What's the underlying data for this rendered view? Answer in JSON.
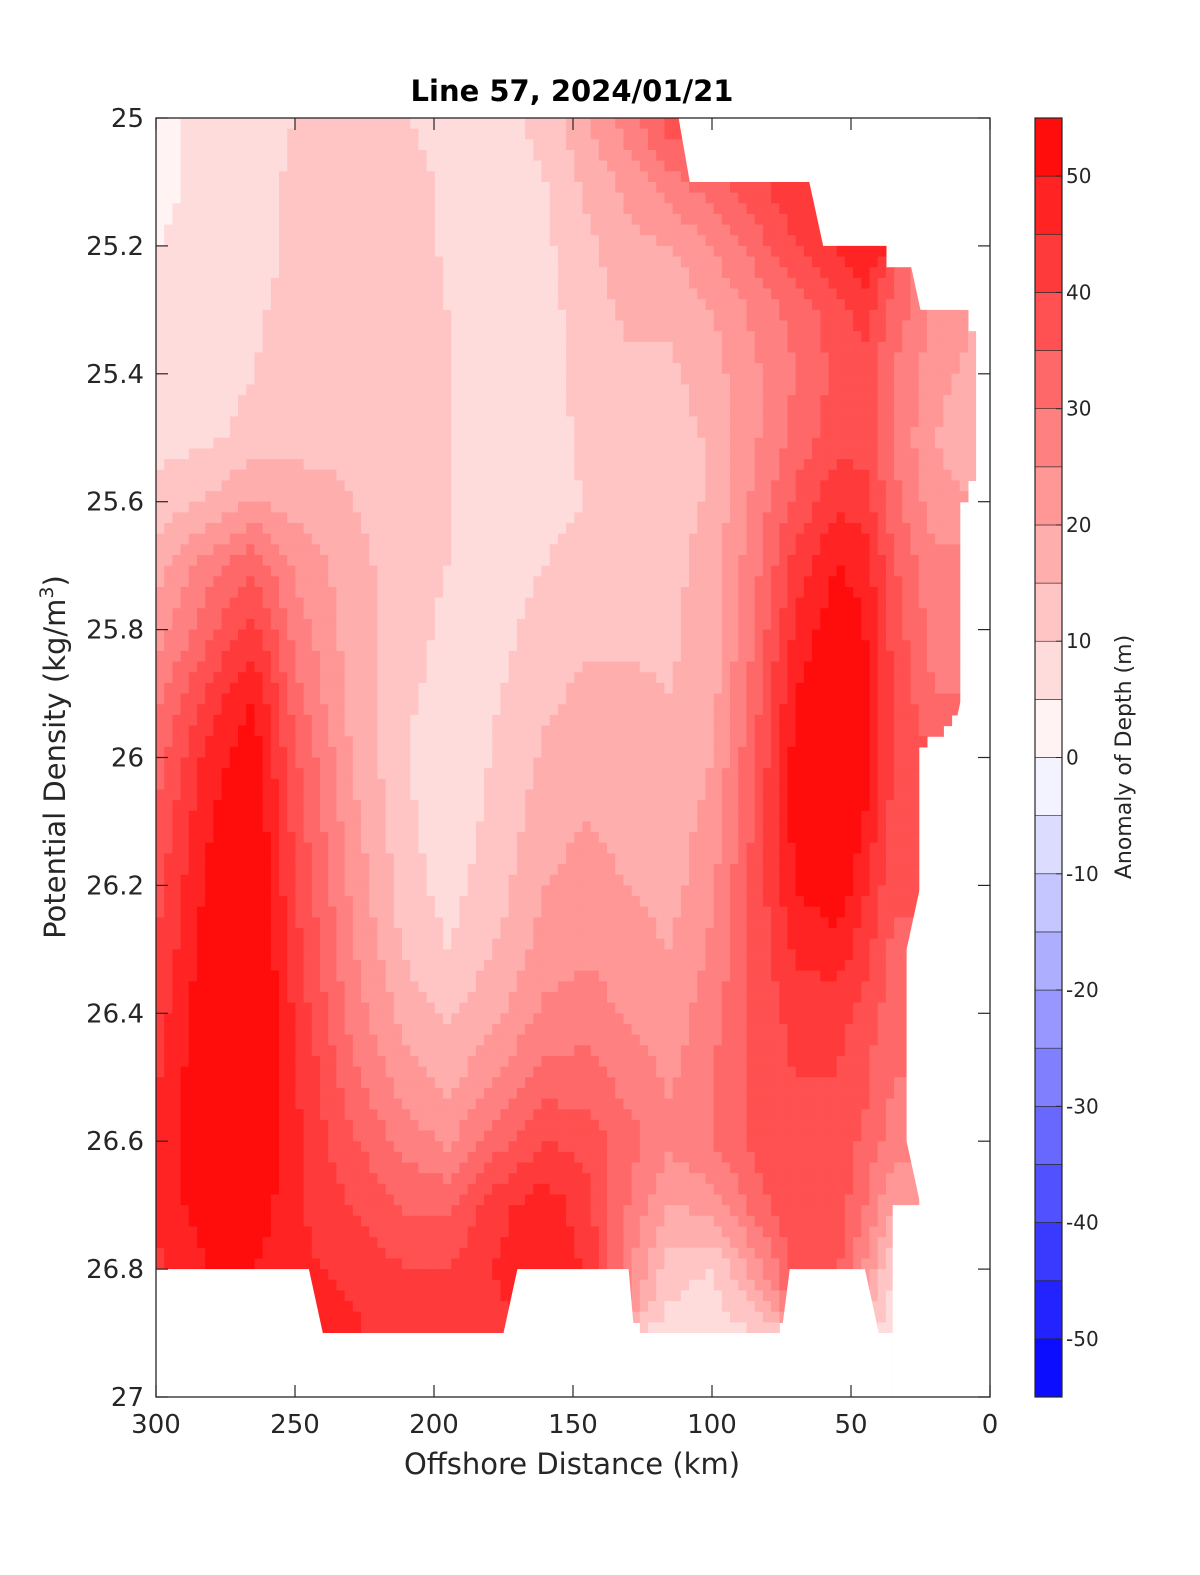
{
  "chart_data": {
    "type": "heatmap",
    "title": "Line 57, 2024/01/21",
    "xlabel": "Offshore Distance (km)",
    "ylabel": "Potential Density (kg/m",
    "ylabel_sup": "3",
    "ylabel_close": ")",
    "xlim": [
      300,
      0
    ],
    "ylim": [
      25,
      27
    ],
    "x_reversed": true,
    "y_reversed": true,
    "xticks": [
      300,
      250,
      200,
      150,
      100,
      50,
      0
    ],
    "xtick_labels": [
      "300",
      "250",
      "200",
      "150",
      "100",
      "50",
      "0"
    ],
    "yticks": [
      25,
      25.2,
      25.4,
      25.6,
      25.8,
      26,
      26.2,
      26.4,
      26.6,
      26.8,
      27
    ],
    "ytick_labels": [
      "25",
      "25.2",
      "25.4",
      "25.6",
      "25.8",
      "26",
      "26.2",
      "26.4",
      "26.6",
      "26.8",
      "27"
    ],
    "colorbar": {
      "label": "Anomaly of Depth (m)",
      "clim": [
        -55,
        55
      ],
      "ticks": [
        50,
        40,
        30,
        20,
        10,
        0,
        -10,
        -20,
        -30,
        -40,
        -50
      ],
      "tick_labels": [
        "50",
        "40",
        "30",
        "20",
        "10",
        "0",
        "-10",
        "-20",
        "-30",
        "-40",
        "-50"
      ],
      "levels": 22,
      "colormap": "blue-white-red",
      "color_neg": "#0000ff",
      "color_zero": "#ffffff",
      "color_pos": "#ff0000"
    },
    "grid": false,
    "x": [
      300,
      280,
      265,
      250,
      230,
      210,
      195,
      175,
      160,
      145,
      130,
      115,
      100,
      85,
      70,
      55,
      45,
      35,
      20,
      5
    ],
    "y": [
      25,
      25.1,
      25.2,
      25.3,
      25.4,
      25.5,
      25.6,
      25.7,
      25.8,
      25.9,
      26,
      26.1,
      26.2,
      26.3,
      26.4,
      26.5,
      26.6,
      26.7,
      26.8,
      26.9
    ],
    "z": [
      [
        4,
        6,
        8,
        10,
        12,
        10,
        8,
        8,
        12,
        20,
        28,
        38,
        null,
        null,
        null,
        null,
        null,
        null,
        null,
        null
      ],
      [
        4,
        6,
        8,
        11,
        14,
        12,
        9,
        7,
        10,
        16,
        22,
        28,
        33,
        38,
        45,
        null,
        null,
        null,
        null,
        null
      ],
      [
        5,
        6,
        8,
        11,
        15,
        13,
        9,
        6,
        9,
        14,
        18,
        20,
        25,
        32,
        40,
        46,
        50,
        null,
        null,
        null
      ],
      [
        6,
        7,
        9,
        12,
        15,
        13,
        10,
        5,
        8,
        13,
        16,
        16,
        20,
        26,
        32,
        38,
        42,
        34,
        24,
        null
      ],
      [
        7,
        7,
        10,
        12,
        14,
        13,
        10,
        5,
        8,
        12,
        14,
        14,
        18,
        24,
        30,
        36,
        38,
        30,
        22,
        18
      ],
      [
        8,
        9,
        12,
        13,
        14,
        13,
        10,
        5,
        8,
        11,
        12,
        12,
        16,
        24,
        32,
        38,
        38,
        30,
        20,
        16
      ],
      [
        12,
        16,
        20,
        18,
        15,
        12,
        10,
        7,
        9,
        10,
        11,
        12,
        16,
        26,
        36,
        44,
        42,
        32,
        22,
        null
      ],
      [
        18,
        28,
        34,
        24,
        17,
        12,
        10,
        8,
        10,
        12,
        12,
        13,
        18,
        28,
        42,
        50,
        48,
        36,
        26,
        null
      ],
      [
        22,
        34,
        42,
        28,
        18,
        12,
        9,
        9,
        12,
        14,
        14,
        14,
        18,
        30,
        46,
        54,
        50,
        38,
        28,
        null
      ],
      [
        28,
        42,
        50,
        32,
        18,
        11,
        8,
        10,
        14,
        16,
        16,
        15,
        18,
        32,
        50,
        56,
        52,
        40,
        30,
        null
      ],
      [
        32,
        48,
        53,
        36,
        20,
        10,
        7,
        11,
        16,
        18,
        17,
        16,
        20,
        34,
        52,
        58,
        52,
        40,
        null,
        null
      ],
      [
        36,
        50,
        55,
        38,
        22,
        11,
        7,
        12,
        18,
        20,
        18,
        17,
        22,
        36,
        52,
        58,
        50,
        38,
        null,
        null
      ],
      [
        38,
        52,
        57,
        40,
        24,
        12,
        8,
        14,
        20,
        22,
        20,
        18,
        24,
        36,
        50,
        54,
        46,
        36,
        null,
        null
      ],
      [
        40,
        54,
        58,
        42,
        26,
        14,
        10,
        16,
        22,
        24,
        22,
        20,
        26,
        36,
        46,
        48,
        42,
        34,
        null,
        null
      ],
      [
        42,
        55,
        58,
        44,
        28,
        18,
        14,
        20,
        26,
        28,
        24,
        22,
        28,
        36,
        42,
        42,
        38,
        32,
        null,
        null
      ],
      [
        44,
        56,
        58,
        46,
        32,
        22,
        18,
        26,
        32,
        32,
        28,
        24,
        30,
        36,
        40,
        40,
        36,
        30,
        null,
        null
      ],
      [
        46,
        56,
        56,
        46,
        36,
        28,
        24,
        34,
        40,
        38,
        32,
        26,
        30,
        36,
        40,
        38,
        34,
        28,
        null,
        null
      ],
      [
        46,
        54,
        54,
        46,
        40,
        34,
        34,
        44,
        48,
        42,
        30,
        20,
        22,
        32,
        40,
        38,
        30,
        20,
        null,
        null
      ],
      [
        44,
        50,
        50,
        46,
        44,
        40,
        40,
        46,
        50,
        44,
        26,
        12,
        10,
        22,
        36,
        36,
        24,
        10,
        null,
        null
      ],
      [
        null,
        null,
        null,
        48,
        46,
        42,
        40,
        44,
        46,
        null,
        null,
        8,
        6,
        10,
        null,
        null,
        14,
        6,
        null,
        null
      ]
    ],
    "masked_regions": [
      "top-right corner steps",
      "bottom band below 26.8 except 245-175 km, 130-75 km, 40-35 km",
      "right edge beyond 5-30 km"
    ]
  }
}
